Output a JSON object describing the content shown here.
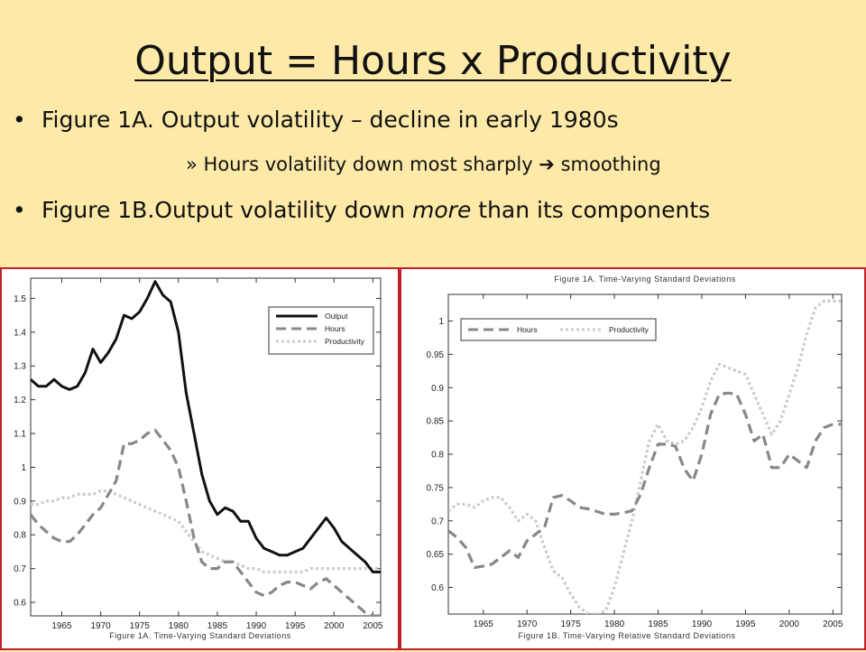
{
  "slide": {
    "title": "Output = Hours x Productivity",
    "bullet1_prefix": "Figure 1A. Output volatility – decline in early 1980s",
    "sub_prefix": "» ",
    "sub_text": "Hours volatility down most sharply ",
    "sub_arrow": "➔",
    "sub_suffix": " smoothing",
    "bullet2_a": "Figure 1B.Output volatility down ",
    "bullet2_em": "more",
    "bullet2_b": " than its components",
    "bullet_glyph": "•",
    "panel_border_color": "#c0202a"
  },
  "chart_data": [
    {
      "type": "line",
      "caption": "Figure 1A. Time-Varying Standard Deviations",
      "xlim": [
        1961,
        2006
      ],
      "ylim": [
        0.56,
        1.56
      ],
      "x_ticks": [
        1965,
        1970,
        1975,
        1980,
        1985,
        1990,
        1995,
        2000,
        2005
      ],
      "y_ticks": [
        0.6,
        0.7,
        0.8,
        0.9,
        1,
        1.1,
        1.2,
        1.3,
        1.4,
        1.5
      ],
      "y_tick_labels": [
        "0.6",
        "0.7",
        "0.8",
        "0.9",
        "1",
        "1.1",
        "1.2",
        "1.3",
        "1.4",
        "1.5"
      ],
      "legend_position": "top-right",
      "series": [
        {
          "name": "Output",
          "color": "#111111",
          "dash": "solid",
          "x": [
            1961,
            1962,
            1963,
            1964,
            1965,
            1966,
            1967,
            1968,
            1969,
            1970,
            1971,
            1972,
            1973,
            1974,
            1975,
            1976,
            1977,
            1978,
            1979,
            1980,
            1981,
            1982,
            1983,
            1984,
            1985,
            1986,
            1987,
            1988,
            1989,
            1990,
            1991,
            1992,
            1993,
            1994,
            1995,
            1996,
            1997,
            1998,
            1999,
            2000,
            2001,
            2002,
            2003,
            2004,
            2005,
            2006
          ],
          "y": [
            1.26,
            1.24,
            1.24,
            1.26,
            1.24,
            1.23,
            1.24,
            1.28,
            1.35,
            1.31,
            1.34,
            1.38,
            1.45,
            1.44,
            1.46,
            1.5,
            1.55,
            1.51,
            1.49,
            1.4,
            1.22,
            1.1,
            0.98,
            0.9,
            0.86,
            0.88,
            0.87,
            0.84,
            0.84,
            0.79,
            0.76,
            0.75,
            0.74,
            0.74,
            0.75,
            0.76,
            0.79,
            0.82,
            0.85,
            0.82,
            0.78,
            0.76,
            0.74,
            0.72,
            0.69,
            0.69
          ]
        },
        {
          "name": "Hours",
          "color": "#888888",
          "dash": "dashed",
          "x": [
            1961,
            1962,
            1963,
            1964,
            1965,
            1966,
            1967,
            1968,
            1969,
            1970,
            1971,
            1972,
            1973,
            1974,
            1975,
            1976,
            1977,
            1978,
            1979,
            1980,
            1981,
            1982,
            1983,
            1984,
            1985,
            1986,
            1987,
            1988,
            1989,
            1990,
            1991,
            1992,
            1993,
            1994,
            1995,
            1996,
            1997,
            1998,
            1999,
            2000,
            2001,
            2002,
            2003,
            2004,
            2005,
            2006
          ],
          "y": [
            0.86,
            0.83,
            0.81,
            0.79,
            0.78,
            0.78,
            0.8,
            0.83,
            0.86,
            0.88,
            0.92,
            0.96,
            1.07,
            1.07,
            1.08,
            1.1,
            1.11,
            1.08,
            1.05,
            1.0,
            0.9,
            0.79,
            0.72,
            0.7,
            0.7,
            0.72,
            0.72,
            0.69,
            0.66,
            0.63,
            0.62,
            0.63,
            0.65,
            0.66,
            0.66,
            0.65,
            0.64,
            0.66,
            0.67,
            0.65,
            0.63,
            0.61,
            0.59,
            0.57,
            0.56,
            0.56
          ]
        },
        {
          "name": "Productivity",
          "color": "#cccccc",
          "dash": "dotted",
          "x": [
            1961,
            1962,
            1963,
            1964,
            1965,
            1966,
            1967,
            1968,
            1969,
            1970,
            1971,
            1972,
            1973,
            1974,
            1975,
            1976,
            1977,
            1978,
            1979,
            1980,
            1981,
            1982,
            1983,
            1984,
            1985,
            1986,
            1987,
            1988,
            1989,
            1990,
            1991,
            1992,
            1993,
            1994,
            1995,
            1996,
            1997,
            1998,
            1999,
            2000,
            2001,
            2002,
            2003,
            2004,
            2005,
            2006
          ],
          "y": [
            0.89,
            0.89,
            0.9,
            0.9,
            0.91,
            0.91,
            0.92,
            0.92,
            0.92,
            0.93,
            0.93,
            0.92,
            0.91,
            0.9,
            0.89,
            0.88,
            0.87,
            0.86,
            0.85,
            0.84,
            0.81,
            0.78,
            0.75,
            0.74,
            0.73,
            0.72,
            0.72,
            0.71,
            0.7,
            0.7,
            0.69,
            0.69,
            0.69,
            0.69,
            0.69,
            0.69,
            0.7,
            0.7,
            0.7,
            0.7,
            0.7,
            0.7,
            0.7,
            0.7,
            0.7,
            0.7
          ]
        }
      ]
    },
    {
      "type": "line",
      "caption": "Figure 1B. Time-Varying Relative Standard Deviations",
      "top_caption": "Figure 1A. Time-Varying Standard Deviations",
      "xlim": [
        1961,
        2006
      ],
      "ylim": [
        0.56,
        1.04
      ],
      "x_ticks": [
        1965,
        1970,
        1975,
        1980,
        1985,
        1990,
        1995,
        2000,
        2005
      ],
      "y_ticks": [
        0.6,
        0.65,
        0.7,
        0.75,
        0.8,
        0.85,
        0.9,
        0.95,
        1
      ],
      "y_tick_labels": [
        "0.6",
        "0.65",
        "0.7",
        "0.75",
        "0.8",
        "0.85",
        "0.9",
        "0.95",
        "1"
      ],
      "legend_position": "top-left",
      "series": [
        {
          "name": "Hours",
          "color": "#888888",
          "dash": "dashed",
          "x": [
            1961,
            1962,
            1963,
            1964,
            1965,
            1966,
            1967,
            1968,
            1969,
            1970,
            1971,
            1972,
            1973,
            1974,
            1975,
            1976,
            1977,
            1978,
            1979,
            1980,
            1981,
            1982,
            1983,
            1984,
            1985,
            1986,
            1987,
            1988,
            1989,
            1990,
            1991,
            1992,
            1993,
            1994,
            1995,
            1996,
            1997,
            1998,
            1999,
            2000,
            2001,
            2002,
            2003,
            2004,
            2005,
            2006
          ],
          "y": [
            0.685,
            0.675,
            0.66,
            0.63,
            0.632,
            0.635,
            0.645,
            0.655,
            0.645,
            0.67,
            0.68,
            0.69,
            0.735,
            0.738,
            0.73,
            0.72,
            0.718,
            0.714,
            0.71,
            0.71,
            0.712,
            0.715,
            0.74,
            0.78,
            0.815,
            0.815,
            0.812,
            0.778,
            0.76,
            0.8,
            0.86,
            0.89,
            0.892,
            0.89,
            0.86,
            0.82,
            0.83,
            0.78,
            0.78,
            0.8,
            0.79,
            0.78,
            0.82,
            0.84,
            0.845,
            0.845
          ]
        },
        {
          "name": "Productivity",
          "color": "#cccccc",
          "dash": "dotted",
          "x": [
            1961,
            1962,
            1963,
            1964,
            1965,
            1966,
            1967,
            1968,
            1969,
            1970,
            1971,
            1972,
            1973,
            1974,
            1975,
            1976,
            1977,
            1978,
            1979,
            1980,
            1981,
            1982,
            1983,
            1984,
            1985,
            1986,
            1987,
            1988,
            1989,
            1990,
            1991,
            1992,
            1993,
            1994,
            1995,
            1996,
            1997,
            1998,
            1999,
            2000,
            2001,
            2002,
            2003,
            2004,
            2005,
            2006
          ],
          "y": [
            0.715,
            0.725,
            0.725,
            0.72,
            0.73,
            0.735,
            0.735,
            0.72,
            0.7,
            0.71,
            0.7,
            0.66,
            0.625,
            0.615,
            0.59,
            0.57,
            0.56,
            0.56,
            0.565,
            0.6,
            0.65,
            0.7,
            0.76,
            0.82,
            0.845,
            0.82,
            0.815,
            0.82,
            0.84,
            0.87,
            0.91,
            0.935,
            0.93,
            0.925,
            0.92,
            0.89,
            0.86,
            0.83,
            0.85,
            0.89,
            0.93,
            0.98,
            1.02,
            1.03,
            1.03,
            1.03
          ]
        }
      ]
    }
  ]
}
